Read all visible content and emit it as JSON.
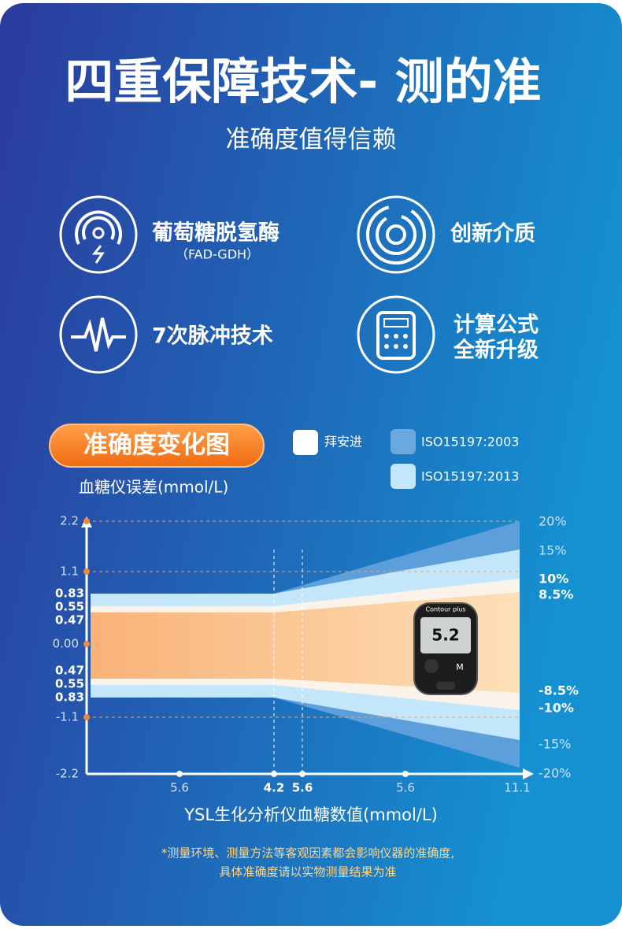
{
  "header": {
    "title": "四重保障技术- 测的准",
    "subtitle": "准确度值得信赖"
  },
  "features": [
    {
      "label": "葡萄糖脱氢酶",
      "sublabel": "（FAD-GDH）"
    },
    {
      "label": "创新介质"
    },
    {
      "label": "7次脉冲技术"
    },
    {
      "label": "计算公式",
      "label2": "全新升级"
    }
  ],
  "chart": {
    "badge": "准确度变化图",
    "legend": [
      "拜安进",
      "ISO15197:2003",
      "ISO15197:2013"
    ],
    "y_title": "血糖仪误差(mmol/L)",
    "y_labels": [
      "2.2",
      "1.1",
      "0.83",
      "0.55",
      "0.47",
      "0.00",
      "0.47",
      "0.55",
      "0.83",
      "-1.1",
      "-2.2"
    ],
    "x_labels": [
      "5.6",
      "4.2",
      "5.6",
      "5.6",
      "11.1"
    ],
    "x_title": "YSL生化分析仪血糖数值(mmol/L)",
    "right_labels": [
      "20%",
      "15%",
      "10%",
      "8.5%",
      "-8.5%",
      "-10%",
      "-15%",
      "-20%"
    ],
    "device": {
      "brand": "Contour plus",
      "reading": "5.2",
      "button": "M"
    }
  },
  "footnote": [
    "*测量环境、测量方法等客观因素都会影响仪器的准确度,",
    "具体准确度请以实物测量结果为准"
  ]
}
